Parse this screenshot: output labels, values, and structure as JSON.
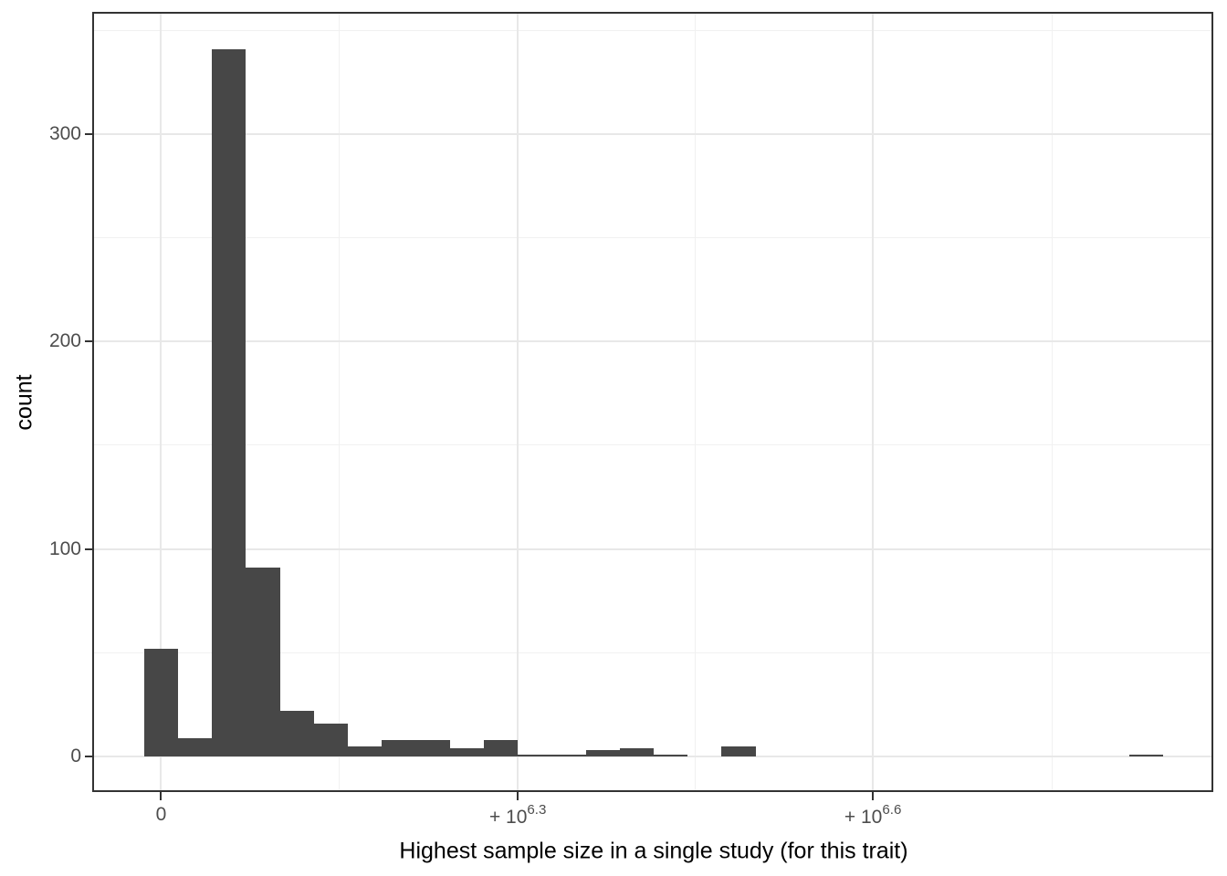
{
  "chart_data": {
    "type": "bar",
    "variant": "histogram",
    "title": "",
    "xlabel": "Highest sample size in a single study (for this trait)",
    "ylabel": "count",
    "legend": "none",
    "grid": true,
    "bar_color": "#474747",
    "grid_major_color": "#e8e8e8",
    "grid_minor_color": "#f1f1f1",
    "panel_border_color": "#333333",
    "tick_label_color": "#4d4d4d",
    "axis_title_color": "#000000",
    "x_domain": [
      -380000,
      5890000
    ],
    "y_domain": [
      -17.1,
      358.4
    ],
    "bin_width": 190000,
    "bins": [
      {
        "x": 0,
        "count": 52
      },
      {
        "x": 190000,
        "count": 9
      },
      {
        "x": 380000,
        "count": 341
      },
      {
        "x": 570000,
        "count": 91
      },
      {
        "x": 760000,
        "count": 22
      },
      {
        "x": 950000,
        "count": 16
      },
      {
        "x": 1140000,
        "count": 5
      },
      {
        "x": 1330000,
        "count": 8
      },
      {
        "x": 1520000,
        "count": 8
      },
      {
        "x": 1710000,
        "count": 4
      },
      {
        "x": 1900000,
        "count": 8
      },
      {
        "x": 2090000,
        "count": 1
      },
      {
        "x": 2280000,
        "count": 1
      },
      {
        "x": 2470000,
        "count": 3
      },
      {
        "x": 2660000,
        "count": 4
      },
      {
        "x": 2850000,
        "count": 1
      },
      {
        "x": 3230000,
        "count": 5
      },
      {
        "x": 5510000,
        "count": 1
      }
    ],
    "x_ticks": [
      {
        "value": 0,
        "base": "0",
        "exp": ""
      },
      {
        "value": 1995262,
        "base": "+ 10",
        "exp": "6.3"
      },
      {
        "value": 3981072,
        "base": "+ 10",
        "exp": "6.6"
      }
    ],
    "x_minor": [
      997631,
      2988167,
      4983236
    ],
    "y_ticks": [
      {
        "value": 0,
        "label": "0"
      },
      {
        "value": 100,
        "label": "100"
      },
      {
        "value": 200,
        "label": "200"
      },
      {
        "value": 300,
        "label": "300"
      }
    ],
    "y_minor": [
      50,
      150,
      250,
      350
    ]
  }
}
